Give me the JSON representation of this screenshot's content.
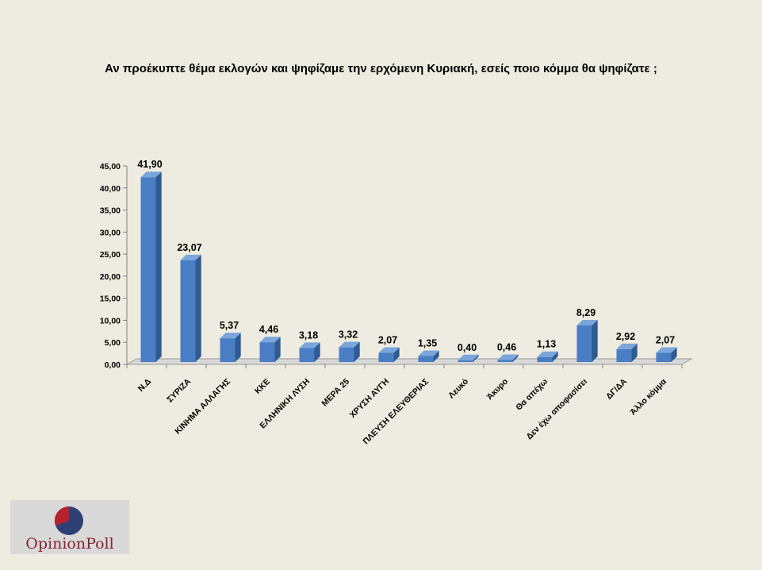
{
  "chart_data": {
    "type": "bar",
    "title": "Αν προέκυπτε θέμα εκλογών και ψηφίζαμε την ερχόμενη Κυριακή, εσείς ποιο κόμμα θα ψηφίζατε ;",
    "categories": [
      "Ν.Δ",
      "ΣΥΡΙΖΑ",
      "ΚΙΝΗΜΑ ΑΛΛΑΓΗΣ",
      "ΚΚΕ",
      "ΕΛΛΗΝΙΚΗ ΛΥΣΗ",
      "ΜΕΡΑ 25",
      "ΧΡΥΣΗ ΑΥΓΗ",
      "ΠΛΕΥΣΗ ΕΛΕΥΘΕΡΙΑΣ",
      "Λευκό",
      "Άκυρο",
      "Θα απέχω",
      "Δεν έχω αποφασίσει",
      "ΔΓ/ΔΑ",
      "Άλλο κόμμα"
    ],
    "values": [
      41.9,
      23.07,
      5.37,
      4.46,
      3.18,
      3.32,
      2.07,
      1.35,
      0.4,
      0.46,
      1.13,
      8.29,
      2.92,
      2.07
    ],
    "value_labels": [
      "41,90",
      "23,07",
      "5,37",
      "4,46",
      "3,18",
      "3,32",
      "2,07",
      "1,35",
      "0,40",
      "0,46",
      "1,13",
      "8,29",
      "2,92",
      "2,07"
    ],
    "yticks": [
      "0,00",
      "5,00",
      "10,00",
      "15,00",
      "20,00",
      "25,00",
      "30,00",
      "35,00",
      "40,00",
      "45,00"
    ],
    "ylim": [
      0,
      45
    ],
    "grid": false,
    "legend": "none",
    "colors": {
      "bar_front": "#4a7ec4",
      "bar_side": "#2f5a92",
      "bar_top": "#7aa6dc",
      "background": "#eeebe0"
    }
  },
  "logo": {
    "text": "OpinionPoll"
  }
}
